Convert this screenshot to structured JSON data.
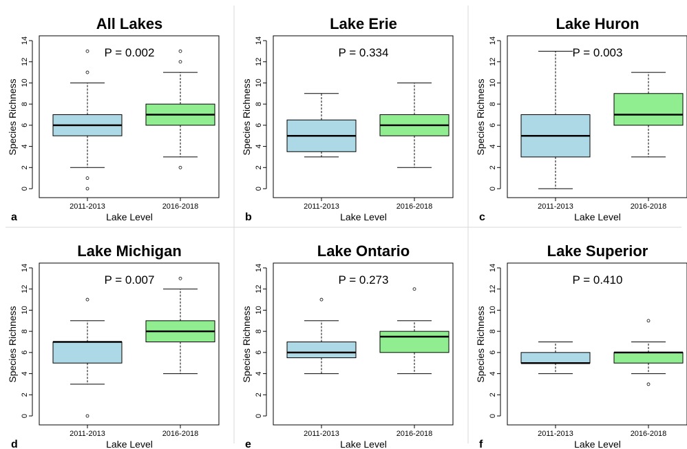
{
  "figure": {
    "divider_color": "#d9d9d9",
    "box_colors": {
      "2011-2013": "#add8e6",
      "2016-2018": "#90ee90"
    }
  },
  "chart_data": [
    {
      "type": "box",
      "letter": "a",
      "title": "All Lakes",
      "annotation": "P = 0.002",
      "xlabel": "Lake Level",
      "ylabel": "Species Richness",
      "ylim": [
        0,
        14
      ],
      "yticks": [
        0,
        2,
        4,
        6,
        8,
        10,
        12,
        14
      ],
      "categories": [
        "2011-2013",
        "2016-2018"
      ],
      "boxes": [
        {
          "category": "2011-2013",
          "whisker_low": 2,
          "q1": 5,
          "median": 6,
          "q3": 7,
          "whisker_high": 10,
          "outliers": [
            0,
            1,
            11,
            13
          ],
          "color": "#add8e6"
        },
        {
          "category": "2016-2018",
          "whisker_low": 3,
          "q1": 6,
          "median": 7,
          "q3": 8,
          "whisker_high": 11,
          "outliers": [
            2,
            12,
            13
          ],
          "color": "#90ee90"
        }
      ]
    },
    {
      "type": "box",
      "letter": "b",
      "title": "Lake Erie",
      "annotation": "P = 0.334",
      "xlabel": "Lake Level",
      "ylabel": "Species Richness",
      "ylim": [
        0,
        14
      ],
      "yticks": [
        0,
        2,
        4,
        6,
        8,
        10,
        12,
        14
      ],
      "categories": [
        "2011-2013",
        "2016-2018"
      ],
      "boxes": [
        {
          "category": "2011-2013",
          "whisker_low": 3,
          "q1": 3.5,
          "median": 5,
          "q3": 6.5,
          "whisker_high": 9,
          "outliers": [],
          "color": "#add8e6"
        },
        {
          "category": "2016-2018",
          "whisker_low": 2,
          "q1": 5,
          "median": 6,
          "q3": 7,
          "whisker_high": 10,
          "outliers": [],
          "color": "#90ee90"
        }
      ]
    },
    {
      "type": "box",
      "letter": "c",
      "title": "Lake Huron",
      "annotation": "P = 0.003",
      "xlabel": "Lake Level",
      "ylabel": "Species Richness",
      "ylim": [
        0,
        14
      ],
      "yticks": [
        0,
        2,
        4,
        6,
        8,
        10,
        12,
        14
      ],
      "categories": [
        "2011-2013",
        "2016-2018"
      ],
      "boxes": [
        {
          "category": "2011-2013",
          "whisker_low": 0,
          "q1": 3,
          "median": 5,
          "q3": 7,
          "whisker_high": 13,
          "outliers": [],
          "color": "#add8e6"
        },
        {
          "category": "2016-2018",
          "whisker_low": 3,
          "q1": 6,
          "median": 7,
          "q3": 9,
          "whisker_high": 11,
          "outliers": [],
          "color": "#90ee90"
        }
      ]
    },
    {
      "type": "box",
      "letter": "d",
      "title": "Lake Michigan",
      "annotation": "P = 0.007",
      "xlabel": "Lake Level",
      "ylabel": "Species Richness",
      "ylim": [
        0,
        14
      ],
      "yticks": [
        0,
        2,
        4,
        6,
        8,
        10,
        12,
        14
      ],
      "categories": [
        "2011-2013",
        "2016-2018"
      ],
      "boxes": [
        {
          "category": "2011-2013",
          "whisker_low": 3,
          "q1": 5,
          "median": 7,
          "q3": 7,
          "whisker_high": 9,
          "outliers": [
            0,
            11
          ],
          "color": "#add8e6"
        },
        {
          "category": "2016-2018",
          "whisker_low": 4,
          "q1": 7,
          "median": 8,
          "q3": 9,
          "whisker_high": 12,
          "outliers": [
            13
          ],
          "color": "#90ee90"
        }
      ]
    },
    {
      "type": "box",
      "letter": "e",
      "title": "Lake Ontario",
      "annotation": "P = 0.273",
      "xlabel": "Lake Level",
      "ylabel": "Species Richness",
      "ylim": [
        0,
        14
      ],
      "yticks": [
        0,
        2,
        4,
        6,
        8,
        10,
        12,
        14
      ],
      "categories": [
        "2011-2013",
        "2016-2018"
      ],
      "boxes": [
        {
          "category": "2011-2013",
          "whisker_low": 4,
          "q1": 5.5,
          "median": 6,
          "q3": 7,
          "whisker_high": 9,
          "outliers": [
            11
          ],
          "color": "#add8e6"
        },
        {
          "category": "2016-2018",
          "whisker_low": 4,
          "q1": 6,
          "median": 7.5,
          "q3": 8,
          "whisker_high": 9,
          "outliers": [
            12
          ],
          "color": "#90ee90"
        }
      ]
    },
    {
      "type": "box",
      "letter": "f",
      "title": "Lake Superior",
      "annotation": "P = 0.410",
      "xlabel": "Lake Level",
      "ylabel": "Species Richness",
      "ylim": [
        0,
        14
      ],
      "yticks": [
        0,
        2,
        4,
        6,
        8,
        10,
        12,
        14
      ],
      "categories": [
        "2011-2013",
        "2016-2018"
      ],
      "boxes": [
        {
          "category": "2011-2013",
          "whisker_low": 4,
          "q1": 5,
          "median": 5,
          "q3": 6,
          "whisker_high": 7,
          "outliers": [],
          "color": "#add8e6"
        },
        {
          "category": "2016-2018",
          "whisker_low": 4,
          "q1": 5,
          "median": 6,
          "q3": 6,
          "whisker_high": 7,
          "outliers": [
            3,
            9
          ],
          "color": "#90ee90"
        }
      ]
    }
  ]
}
